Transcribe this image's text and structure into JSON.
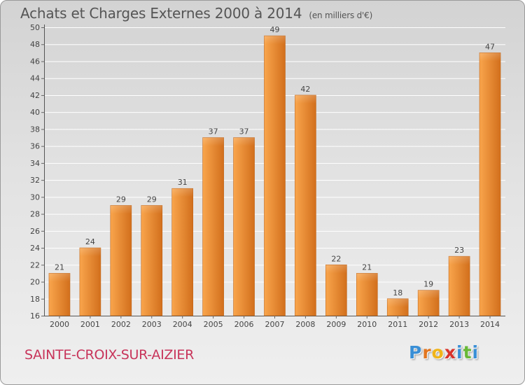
{
  "header": {
    "title": "Achats et Charges Externes 2000 à 2014",
    "subtitle": "(en milliers d'€)"
  },
  "footer": {
    "commune": "SAINTE-CROIX-SUR-AIZIER",
    "logo_letters": [
      "P",
      "r",
      "o",
      "x",
      "i",
      "t",
      "i"
    ]
  },
  "chart_data": {
    "type": "bar",
    "categories": [
      "2000",
      "2001",
      "2002",
      "2003",
      "2004",
      "2005",
      "2006",
      "2007",
      "2008",
      "2009",
      "2010",
      "2011",
      "2012",
      "2013",
      "2014"
    ],
    "values": [
      21,
      24,
      29,
      29,
      31,
      37,
      37,
      49,
      42,
      22,
      21,
      18,
      19,
      23,
      47
    ],
    "ylim": [
      16,
      50
    ],
    "yticks": [
      16,
      18,
      20,
      22,
      24,
      26,
      28,
      30,
      32,
      34,
      36,
      38,
      40,
      42,
      44,
      46,
      48,
      50
    ],
    "grid": "horizontal",
    "colors": {
      "bar_light": "#f9a54c",
      "bar_dark": "#d26f1c",
      "grid": "#ffffff",
      "text": "#444444"
    }
  }
}
